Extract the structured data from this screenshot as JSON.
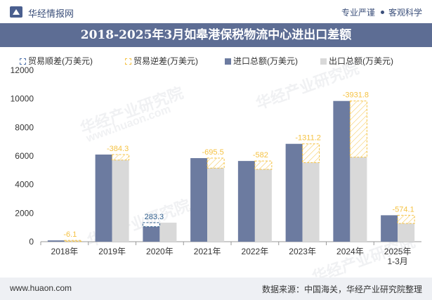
{
  "header": {
    "brand": "华经情报网",
    "tag_left": "专业严谨",
    "tag_right": "客观科学"
  },
  "colors": {
    "title_bar": "#5d6d94",
    "import_bar": "#6c7ba0",
    "export_bar": "#d9d9d9",
    "surplus_color": "#2e5d8c",
    "deficit_color": "#f5c242"
  },
  "legend": {
    "surplus": "贸易顺差(万美元)",
    "deficit": "贸易逆差(万美元)",
    "import": "进口总额(万美元)",
    "export": "出口总额(万美元)"
  },
  "watermark": {
    "cn": "华经产业研究院",
    "url": "www.huaon.com"
  },
  "footer": {
    "website": "www.huaon.com",
    "source": "数据来源：中国海关，华经产业研究院整理"
  },
  "chart_data": {
    "type": "bar",
    "title": "2018-2025年3月如皋港保税物流中心进出口差额",
    "categories": [
      "2018年",
      "2019年",
      "2020年",
      "2021年",
      "2022年",
      "2023年",
      "2024年",
      "2025年\n1-3月"
    ],
    "ylim": [
      0,
      12000
    ],
    "yticks": [
      0,
      2000,
      4000,
      6000,
      8000,
      10000,
      12000
    ],
    "series": [
      {
        "name": "进口总额(万美元)",
        "values": [
          90,
          6100,
          1050,
          5850,
          5650,
          6850,
          9850,
          1850
        ]
      },
      {
        "name": "出口总额(万美元)",
        "values": [
          84,
          5716,
          1333,
          5154,
          5068,
          5539,
          5918,
          1276
        ]
      }
    ],
    "balance": [
      {
        "type": "deficit",
        "value": -6.1,
        "label": "-6.1"
      },
      {
        "type": "deficit",
        "value": -384.3,
        "label": "-384.3"
      },
      {
        "type": "surplus",
        "value": 283.3,
        "label": "283.3"
      },
      {
        "type": "deficit",
        "value": -695.5,
        "label": "-695.5"
      },
      {
        "type": "deficit",
        "value": -582,
        "label": "-582"
      },
      {
        "type": "deficit",
        "value": -1311.2,
        "label": "-1311.2"
      },
      {
        "type": "deficit",
        "value": -3931.8,
        "label": "-3931.8"
      },
      {
        "type": "deficit",
        "value": -574.1,
        "label": "-574.1"
      }
    ],
    "legend_position": "top"
  }
}
